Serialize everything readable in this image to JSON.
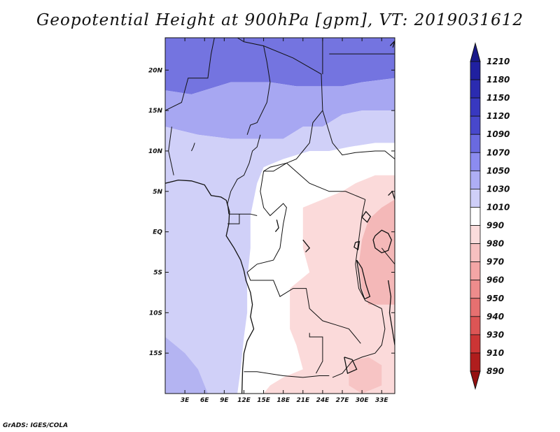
{
  "title": "Geopotential Height at 900hPa [gpm], VT: 2019031612",
  "footer": "GrADS: IGES/COLA",
  "chart_data": {
    "type": "heatmap",
    "title": "Geopotential Height at 900hPa [gpm], VT: 2019031612",
    "variable": "Geopotential Height at 900hPa",
    "units": "gpm",
    "valid_time": "2019031612",
    "x_range": [
      0,
      35
    ],
    "y_range": [
      -20,
      24
    ],
    "x_ticks": [
      {
        "value": 3,
        "label": "3E"
      },
      {
        "value": 6,
        "label": "6E"
      },
      {
        "value": 9,
        "label": "9E"
      },
      {
        "value": 12,
        "label": "12E"
      },
      {
        "value": 15,
        "label": "15E"
      },
      {
        "value": 18,
        "label": "18E"
      },
      {
        "value": 21,
        "label": "21E"
      },
      {
        "value": 24,
        "label": "24E"
      },
      {
        "value": 27,
        "label": "27E"
      },
      {
        "value": 30,
        "label": "30E"
      },
      {
        "value": 33,
        "label": "33E"
      }
    ],
    "y_ticks": [
      {
        "value": 20,
        "label": "20N"
      },
      {
        "value": 15,
        "label": "15N"
      },
      {
        "value": 10,
        "label": "10N"
      },
      {
        "value": 5,
        "label": "5N"
      },
      {
        "value": 0,
        "label": "EQ"
      },
      {
        "value": -5,
        "label": "5S"
      },
      {
        "value": -10,
        "label": "10S"
      },
      {
        "value": -15,
        "label": "15S"
      }
    ],
    "legend": {
      "labels": [
        1210,
        1180,
        1150,
        1120,
        1090,
        1070,
        1050,
        1030,
        1010,
        990,
        980,
        970,
        960,
        950,
        940,
        930,
        910,
        890
      ],
      "colors": [
        "#1a1a8a",
        "#2020a0",
        "#2b2bb0",
        "#3838c0",
        "#4848cc",
        "#6a6ae0",
        "#8c8cf0",
        "#aeaef5",
        "#cfcff8",
        "#ffffff",
        "#fbdcdc",
        "#f7c0c0",
        "#f4a6a6",
        "#ee8c8c",
        "#e67070",
        "#dd5555",
        "#cc3535",
        "#b01d1d",
        "#951010"
      ]
    },
    "regions": [
      {
        "name": "north-high",
        "color": "#7474e0",
        "level": 1090,
        "points": [
          [
            0,
            24
          ],
          [
            35,
            24
          ],
          [
            35,
            19
          ],
          [
            30,
            18.5
          ],
          [
            27,
            18
          ],
          [
            24,
            18
          ],
          [
            20,
            18
          ],
          [
            16,
            18.5
          ],
          [
            10,
            18.5
          ],
          [
            4,
            17
          ],
          [
            0,
            17.5
          ]
        ]
      },
      {
        "name": "north-mid",
        "color": "#a7a7f2",
        "level": 1050,
        "points": [
          [
            0,
            17.5
          ],
          [
            4,
            17
          ],
          [
            10,
            18.5
          ],
          [
            16,
            18.5
          ],
          [
            20,
            18
          ],
          [
            24,
            18
          ],
          [
            27,
            18
          ],
          [
            30,
            18.5
          ],
          [
            35,
            19
          ],
          [
            35,
            15
          ],
          [
            30,
            15
          ],
          [
            27,
            14.5
          ],
          [
            24,
            13
          ],
          [
            21,
            13
          ],
          [
            18,
            11.5
          ],
          [
            15,
            11.5
          ],
          [
            10,
            11.5
          ],
          [
            5,
            12
          ],
          [
            0,
            13
          ]
        ]
      },
      {
        "name": "west-band",
        "color": "#d0d0f8",
        "level": 1030,
        "points": [
          [
            0,
            13
          ],
          [
            5,
            12
          ],
          [
            10,
            11.5
          ],
          [
            15,
            11.5
          ],
          [
            18,
            11.5
          ],
          [
            21,
            13
          ],
          [
            24,
            13
          ],
          [
            27,
            14.5
          ],
          [
            30,
            15
          ],
          [
            35,
            15
          ],
          [
            35,
            11
          ],
          [
            32,
            11
          ],
          [
            28,
            10.5
          ],
          [
            25,
            10
          ],
          [
            22,
            10
          ],
          [
            18,
            9
          ],
          [
            15,
            8
          ],
          [
            14,
            6
          ],
          [
            13,
            2
          ],
          [
            13,
            -2
          ],
          [
            12.5,
            -6
          ],
          [
            12.5,
            -10
          ],
          [
            12,
            -13
          ],
          [
            11.5,
            -17
          ],
          [
            11,
            -20
          ],
          [
            0,
            -20
          ]
        ]
      },
      {
        "name": "southwest-low",
        "color": "#b4b4f2",
        "level": 1050,
        "points": [
          [
            0,
            -13
          ],
          [
            3,
            -15
          ],
          [
            5,
            -17
          ],
          [
            6.5,
            -20
          ],
          [
            0,
            -20
          ]
        ]
      },
      {
        "name": "east-low",
        "color": "#fbdada",
        "level": 980,
        "points": [
          [
            35,
            7
          ],
          [
            32,
            7
          ],
          [
            29,
            6
          ],
          [
            27,
            5
          ],
          [
            24,
            4
          ],
          [
            21,
            3
          ],
          [
            21,
            -2
          ],
          [
            22,
            -5
          ],
          [
            19,
            -7
          ],
          [
            19,
            -12
          ],
          [
            20,
            -14
          ],
          [
            21,
            -17
          ],
          [
            18,
            -18
          ],
          [
            16,
            -19
          ],
          [
            15,
            -20
          ],
          [
            35,
            -20
          ]
        ]
      },
      {
        "name": "east-lower",
        "color": "#f4b8b8",
        "level": 970,
        "points": [
          [
            35,
            4
          ],
          [
            33,
            3
          ],
          [
            31,
            1.5
          ],
          [
            30,
            -1
          ],
          [
            29.5,
            -4
          ],
          [
            30,
            -7
          ],
          [
            31,
            -9
          ],
          [
            35,
            -9
          ]
        ]
      },
      {
        "name": "south-pocket",
        "color": "#f7c4c4",
        "level": 970,
        "points": [
          [
            28,
            -16
          ],
          [
            31,
            -15.5
          ],
          [
            33,
            -16.5
          ],
          [
            33,
            -19
          ],
          [
            30,
            -20
          ],
          [
            28,
            -19
          ]
        ]
      }
    ],
    "country_borders": [
      [
        [
          7.5,
          24
        ],
        [
          7,
          22
        ],
        [
          6.5,
          19
        ],
        [
          3.5,
          19
        ],
        [
          2.5,
          16
        ],
        [
          0,
          15
        ]
      ],
      [
        [
          11,
          24
        ],
        [
          12,
          23.5
        ],
        [
          15,
          23
        ],
        [
          15.5,
          21
        ],
        [
          16,
          18.5
        ],
        [
          15.5,
          16
        ],
        [
          14,
          13.5
        ],
        [
          13,
          13.2
        ],
        [
          12.5,
          12
        ]
      ],
      [
        [
          15,
          23
        ],
        [
          19.5,
          21.5
        ],
        [
          23.8,
          19.5
        ],
        [
          24,
          15
        ],
        [
          22.5,
          13.5
        ],
        [
          22,
          11
        ],
        [
          21,
          10
        ],
        [
          20,
          9
        ],
        [
          18.5,
          8.5
        ],
        [
          16,
          8
        ],
        [
          15,
          7.5
        ]
      ],
      [
        [
          24,
          19.5
        ],
        [
          24,
          24
        ]
      ],
      [
        [
          25,
          22
        ],
        [
          35,
          22
        ]
      ],
      [
        [
          24,
          15
        ],
        [
          25.5,
          11
        ],
        [
          27,
          9.5
        ],
        [
          29,
          9.8
        ],
        [
          32,
          10
        ],
        [
          33.5,
          10
        ],
        [
          35,
          9
        ]
      ],
      [
        [
          15,
          7.5
        ],
        [
          16.5,
          7.5
        ],
        [
          18.5,
          8.5
        ],
        [
          22,
          6
        ],
        [
          25,
          5
        ],
        [
          27.5,
          5
        ],
        [
          30.5,
          4
        ]
      ],
      [
        [
          14.5,
          12
        ],
        [
          14,
          10.5
        ],
        [
          13.3,
          10
        ],
        [
          12.8,
          8.5
        ],
        [
          12,
          7
        ],
        [
          11,
          6.5
        ],
        [
          10,
          5
        ],
        [
          9.5,
          3.5
        ],
        [
          9.7,
          2.2
        ]
      ],
      [
        [
          15,
          7.5
        ],
        [
          14.5,
          5
        ],
        [
          15,
          3
        ],
        [
          16,
          2
        ],
        [
          18,
          3.5
        ],
        [
          18.5,
          3
        ],
        [
          18,
          1
        ],
        [
          17.5,
          -2
        ],
        [
          16.5,
          -3.5
        ],
        [
          14,
          -4
        ],
        [
          12.5,
          -5
        ]
      ],
      [
        [
          9.7,
          2.2
        ],
        [
          11.3,
          2.2
        ],
        [
          13,
          2.2
        ],
        [
          14,
          2
        ]
      ],
      [
        [
          11.3,
          2.2
        ],
        [
          11.3,
          1
        ],
        [
          9.5,
          1
        ]
      ],
      [
        [
          30.5,
          4
        ],
        [
          30,
          2
        ],
        [
          29.5,
          -1
        ],
        [
          29,
          -4
        ],
        [
          29.5,
          -7
        ],
        [
          30.5,
          -8.5
        ],
        [
          33,
          -9.5
        ]
      ],
      [
        [
          12.5,
          -5
        ],
        [
          13,
          -6
        ],
        [
          16.5,
          -6
        ],
        [
          17.5,
          -8
        ],
        [
          19.5,
          -7
        ],
        [
          21.5,
          -7
        ],
        [
          22,
          -9.5
        ],
        [
          24,
          -11
        ],
        [
          26,
          -11.5
        ],
        [
          28,
          -12
        ],
        [
          29,
          -13
        ],
        [
          29.8,
          -13.8
        ]
      ],
      [
        [
          12,
          -17.3
        ],
        [
          14,
          -17.3
        ],
        [
          18,
          -17.8
        ],
        [
          21,
          -18
        ],
        [
          23.5,
          -17.8
        ],
        [
          25,
          -17.8
        ]
      ],
      [
        [
          22,
          -12.5
        ],
        [
          22,
          -13
        ],
        [
          24,
          -13
        ],
        [
          24,
          -16
        ],
        [
          23,
          -17.5
        ]
      ],
      [
        [
          33,
          -9.5
        ],
        [
          33.5,
          -12
        ],
        [
          33,
          -14
        ],
        [
          32,
          -15
        ],
        [
          30,
          -15.5
        ],
        [
          28.5,
          -16
        ],
        [
          27,
          -17.5
        ],
        [
          25.5,
          -18
        ]
      ],
      [
        [
          4,
          10
        ],
        [
          4.3,
          10.5
        ],
        [
          4.5,
          11
        ]
      ],
      [
        [
          1,
          13
        ],
        [
          0.5,
          10
        ],
        [
          1.3,
          7
        ]
      ],
      [
        [
          33,
          -2
        ],
        [
          34,
          -3
        ],
        [
          35,
          -4
        ]
      ]
    ],
    "coastlines": [
      [
        [
          0,
          6
        ],
        [
          2,
          6.4
        ],
        [
          4,
          6.3
        ],
        [
          6,
          5.8
        ],
        [
          7,
          4.5
        ],
        [
          8.5,
          4.3
        ],
        [
          9.3,
          3.9
        ],
        [
          9.8,
          2.5
        ],
        [
          9.7,
          1
        ],
        [
          9.3,
          -0.5
        ],
        [
          10.5,
          -2
        ],
        [
          11.5,
          -3.5
        ],
        [
          12,
          -4.8
        ],
        [
          12.3,
          -6
        ],
        [
          13,
          -7.5
        ],
        [
          13.3,
          -9
        ],
        [
          13,
          -10.5
        ],
        [
          13.5,
          -12
        ],
        [
          12.5,
          -13.5
        ],
        [
          12,
          -15
        ],
        [
          11.8,
          -17
        ],
        [
          11.7,
          -20
        ]
      ],
      [
        [
          34,
          -6
        ],
        [
          34.4,
          -8
        ],
        [
          34.2,
          -10
        ],
        [
          34.6,
          -12
        ],
        [
          35,
          -14
        ]
      ],
      [
        [
          29.2,
          -3.5
        ],
        [
          29.5,
          -5
        ],
        [
          29.8,
          -7
        ],
        [
          30.4,
          -8.3
        ],
        [
          31.2,
          -8
        ],
        [
          30.6,
          -6.5
        ],
        [
          30,
          -4.5
        ],
        [
          29.2,
          -3.5
        ]
      ],
      [
        [
          32,
          -0.5
        ],
        [
          33,
          0.2
        ],
        [
          34,
          -0.2
        ],
        [
          34.5,
          -1
        ],
        [
          34,
          -2.3
        ],
        [
          33,
          -2.6
        ],
        [
          32,
          -2
        ],
        [
          31.7,
          -1
        ],
        [
          32,
          -0.5
        ]
      ],
      [
        [
          29,
          -1.3
        ],
        [
          29.6,
          -1.2
        ],
        [
          29.4,
          -2.2
        ],
        [
          28.8,
          -1.9
        ],
        [
          29,
          -1.3
        ]
      ],
      [
        [
          30,
          1.8
        ],
        [
          30.8,
          1.2
        ],
        [
          31.3,
          1.9
        ],
        [
          30.6,
          2.5
        ],
        [
          30,
          1.8
        ]
      ],
      [
        [
          27.3,
          -15.5
        ],
        [
          28.5,
          -15.8
        ],
        [
          29.2,
          -17
        ],
        [
          27.8,
          -17.5
        ],
        [
          27.3,
          -15.5
        ]
      ],
      [
        [
          34,
          4.5
        ],
        [
          34.6,
          5
        ],
        [
          35,
          4
        ]
      ],
      [
        [
          17,
          1.5
        ],
        [
          17.3,
          0.5
        ],
        [
          16.8,
          0
        ]
      ],
      [
        [
          21,
          -1
        ],
        [
          22,
          -2
        ],
        [
          21.4,
          -2.5
        ]
      ],
      [
        [
          34.3,
          23
        ],
        [
          35,
          23.6
        ],
        [
          34.7,
          22.8
        ]
      ]
    ]
  }
}
